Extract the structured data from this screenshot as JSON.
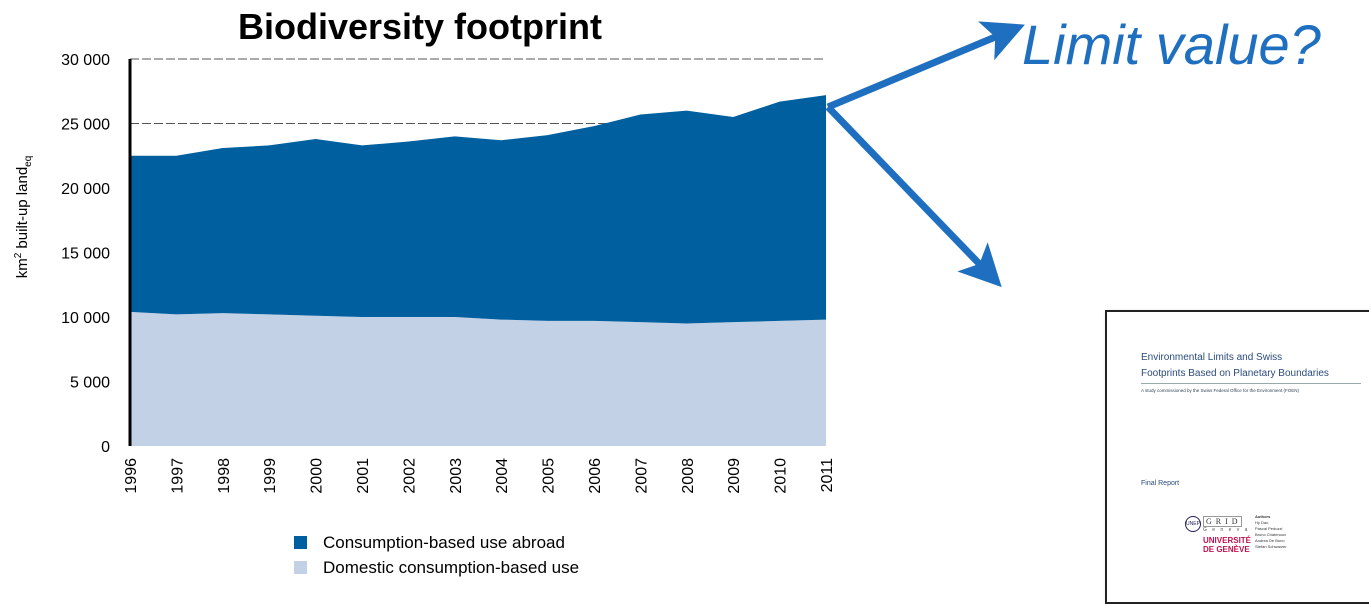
{
  "chart_data": {
    "type": "area",
    "title": "Biodiversity footprint",
    "ylabel_main": "km",
    "ylabel_sup": "2",
    "ylabel_rest": " built-up land",
    "ylabel_sub": "eq",
    "x": [
      "1996",
      "1997",
      "1998",
      "1999",
      "2000",
      "2001",
      "2002",
      "2003",
      "2004",
      "2005",
      "2006",
      "2007",
      "2008",
      "2009",
      "2010",
      "2011"
    ],
    "ylim": [
      0,
      30000
    ],
    "yticks": [
      0,
      5000,
      10000,
      15000,
      20000,
      25000,
      30000
    ],
    "ytick_labels": [
      "0",
      "5 000",
      "10 000",
      "15 000",
      "20 000",
      "25 000",
      "30 000"
    ],
    "stacked": true,
    "series": [
      {
        "name": "Domestic consumption-based use",
        "color": "#c3d1e6",
        "values": [
          10400,
          10200,
          10300,
          10200,
          10100,
          10000,
          10000,
          10000,
          9800,
          9700,
          9700,
          9600,
          9500,
          9600,
          9700,
          9800
        ]
      },
      {
        "name": "Consumption-based use abroad",
        "color": "#00609f",
        "values": [
          12100,
          12300,
          12800,
          13100,
          13700,
          13300,
          13600,
          14000,
          13900,
          14400,
          15100,
          16100,
          16500,
          15900,
          17000,
          17400
        ]
      }
    ],
    "dashed_reference_lines": [
      30000,
      25000
    ],
    "legend_position": "bottom"
  },
  "annotation": {
    "text": "Limit value?",
    "color": "#1f6fc0"
  },
  "report": {
    "title_line1": "Environmental Limits and Swiss",
    "title_line2": "Footprints Based on Planetary Boundaries",
    "subtitle": "A study commissioned by the Swiss Federal Office for the Environment (FOEN)",
    "final": "Final Report",
    "un_logo": "UNEP",
    "grid_logo": "G R I D",
    "geneve_logo": "G e n e v a",
    "univ_line1": "UNIVERSITÉ",
    "univ_line2": "DE GENÈVE",
    "authors_head": "Authors",
    "authors": [
      "Hy Dao",
      "Pascal Peduzzi",
      "Bruno Chatenoux",
      "Andrea De Bono",
      "Stefan Schwarzer"
    ]
  }
}
